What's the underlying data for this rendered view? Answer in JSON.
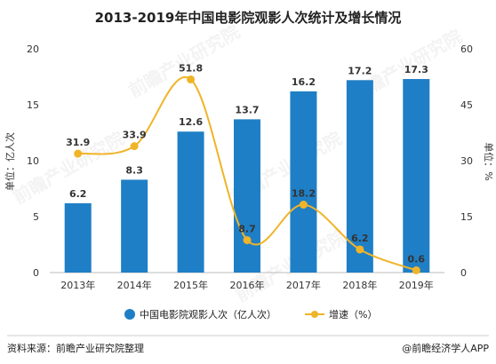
{
  "title": "2013-2019年中国电影院观影人次统计及增长情况",
  "colors": {
    "bar": "#1f7fc6",
    "line": "#f0b428",
    "axis": "#bbbbbb",
    "text": "#333333"
  },
  "chart_data": {
    "type": "bar",
    "categories": [
      "2013年",
      "2014年",
      "2015年",
      "2016年",
      "2017年",
      "2018年",
      "2019年"
    ],
    "series": [
      {
        "name": "中国电影院观影人次（亿人次）",
        "type": "bar",
        "axis": "left",
        "values": [
          6.2,
          8.3,
          12.6,
          13.7,
          16.2,
          17.2,
          17.3
        ],
        "labels": [
          "6.2",
          "8.3",
          "12.6",
          "13.7",
          "16.2",
          "17.2",
          "17.3"
        ]
      },
      {
        "name": "增速（%）",
        "type": "line",
        "axis": "right",
        "values": [
          31.9,
          33.9,
          51.8,
          8.7,
          18.2,
          6.2,
          0.6
        ],
        "labels": [
          "31.9",
          "33.9",
          "51.8",
          "8.7",
          "18.2",
          "6.2",
          "0.6"
        ]
      }
    ],
    "ylabel": "单位：亿人次",
    "ylabel_right": "单位：%",
    "ylim": [
      0,
      20
    ],
    "ylim_right": [
      0,
      60
    ],
    "yticks": [
      "0",
      "5",
      "10",
      "15",
      "20"
    ],
    "yticks_right": [
      "0",
      "15",
      "30",
      "45",
      "60"
    ],
    "grid": false,
    "legend_position": "bottom"
  },
  "footer": {
    "source": "资料来源：前瞻产业研究院整理",
    "brand": "@前瞻经济学人APP"
  },
  "watermark": "前瞻产业研究院"
}
